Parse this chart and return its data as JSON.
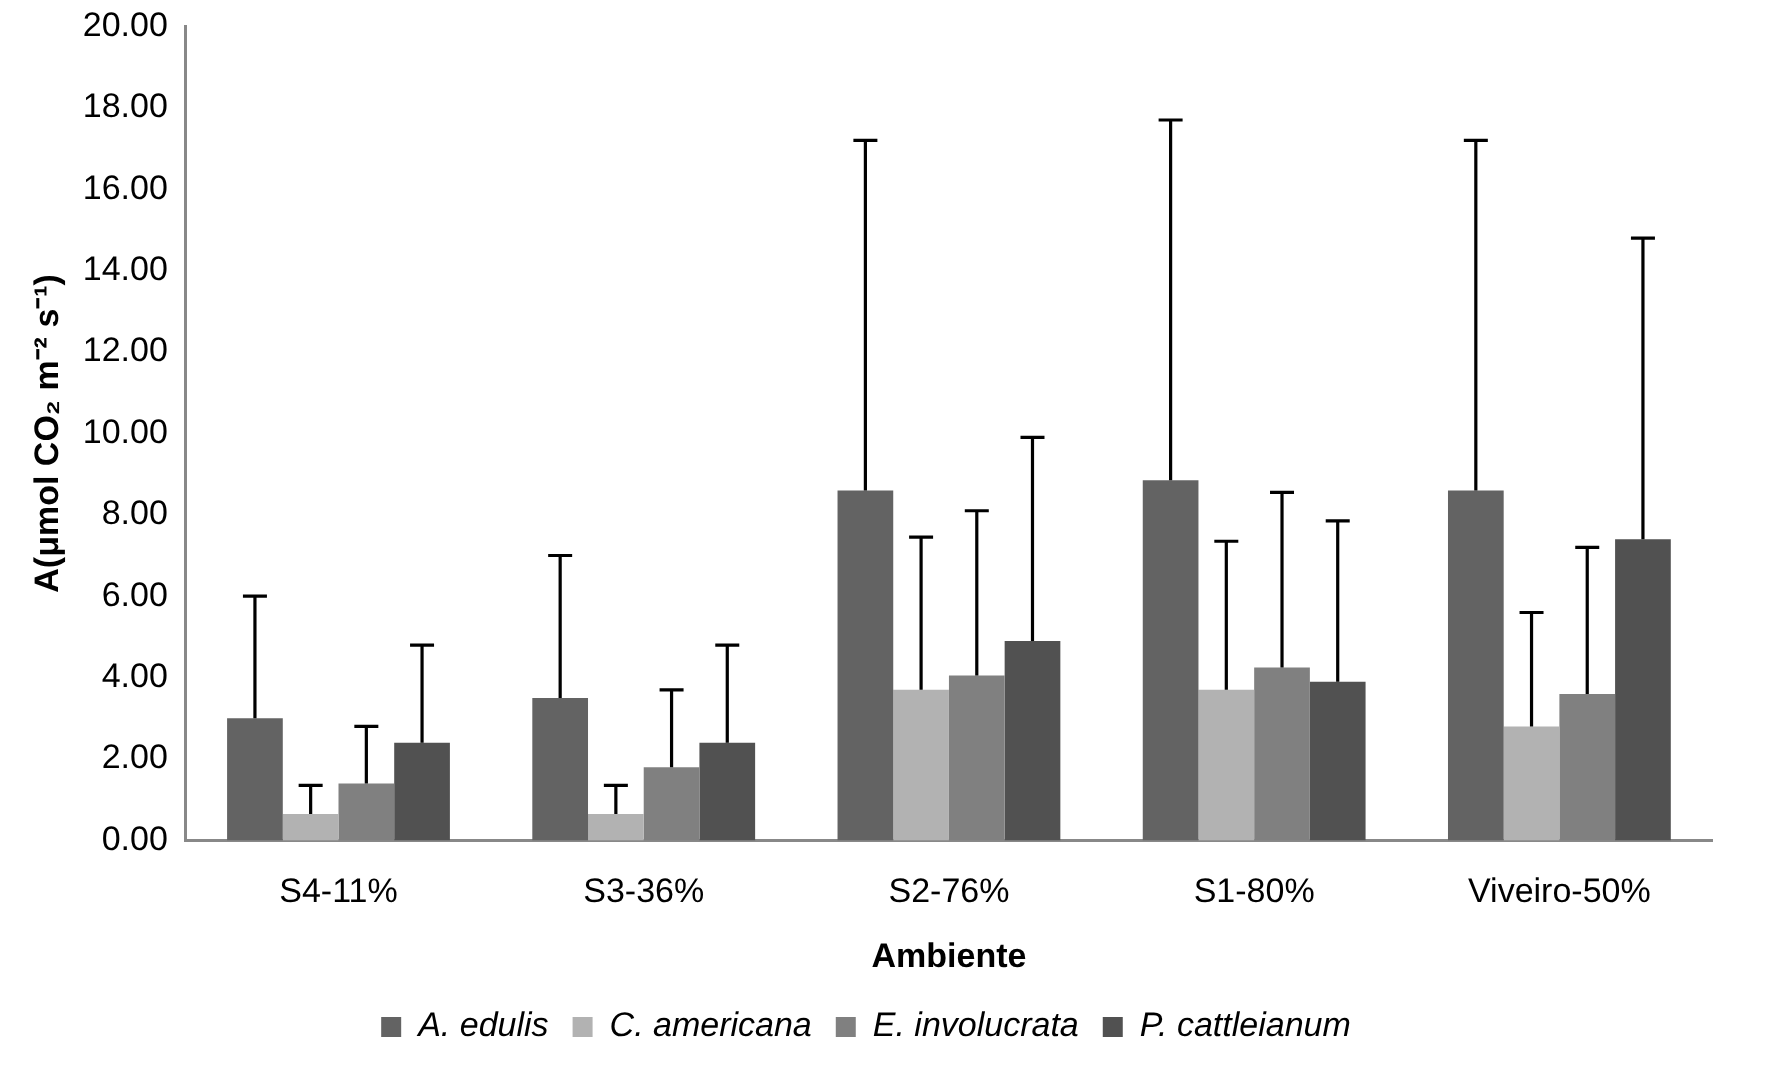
{
  "chart_data": {
    "type": "bar",
    "xlabel": "Ambiente",
    "ylabel": "A(μmol CO₂ m⁻² s⁻¹)",
    "categories": [
      "S4-11%",
      "S3-36%",
      "S2-76%",
      "S1-80%",
      "Viveiro-50%"
    ],
    "series": [
      {
        "name": "A. edulis",
        "color": "#636363",
        "values": [
          3.0,
          3.5,
          8.6,
          8.85,
          8.6
        ],
        "errors": [
          [
            3.0,
            6.0
          ],
          [
            3.5,
            7.0
          ],
          [
            8.6,
            17.2
          ],
          [
            8.85,
            17.7
          ],
          [
            8.6,
            17.2
          ]
        ]
      },
      {
        "name": "C. americana",
        "color": "#b2b2b2",
        "values": [
          0.65,
          0.65,
          3.7,
          3.7,
          2.8
        ],
        "errors": [
          [
            0.65,
            1.35
          ],
          [
            0.65,
            1.35
          ],
          [
            3.7,
            7.45
          ],
          [
            3.7,
            7.35
          ],
          [
            2.8,
            5.6
          ]
        ]
      },
      {
        "name": "E. involucrata",
        "color": "#808080",
        "values": [
          1.4,
          1.8,
          4.05,
          4.25,
          3.6
        ],
        "errors": [
          [
            1.4,
            2.8
          ],
          [
            1.8,
            3.7
          ],
          [
            4.05,
            8.1
          ],
          [
            4.25,
            8.55
          ],
          [
            3.6,
            7.2
          ]
        ]
      },
      {
        "name": "P. cattleianum",
        "color": "#515151",
        "values": [
          2.4,
          2.4,
          4.9,
          3.9,
          7.4
        ],
        "errors": [
          [
            2.4,
            4.8
          ],
          [
            2.4,
            4.8
          ],
          [
            4.9,
            9.9
          ],
          [
            3.9,
            7.85
          ],
          [
            7.4,
            14.8
          ]
        ]
      }
    ],
    "ylim": [
      0,
      20
    ],
    "yticks": [
      {
        "value": 0,
        "label": "0.00"
      },
      {
        "value": 2,
        "label": "2.00"
      },
      {
        "value": 4,
        "label": "4.00"
      },
      {
        "value": 6,
        "label": "6.00"
      },
      {
        "value": 8,
        "label": "8.00"
      },
      {
        "value": 10,
        "label": "10.00"
      },
      {
        "value": 12,
        "label": "12.00"
      },
      {
        "value": 14,
        "label": "14.00"
      },
      {
        "value": 16,
        "label": "16.00"
      },
      {
        "value": 18,
        "label": "18.00"
      },
      {
        "value": 20,
        "label": "20.00"
      }
    ],
    "grid": false,
    "legend": "bottom"
  }
}
